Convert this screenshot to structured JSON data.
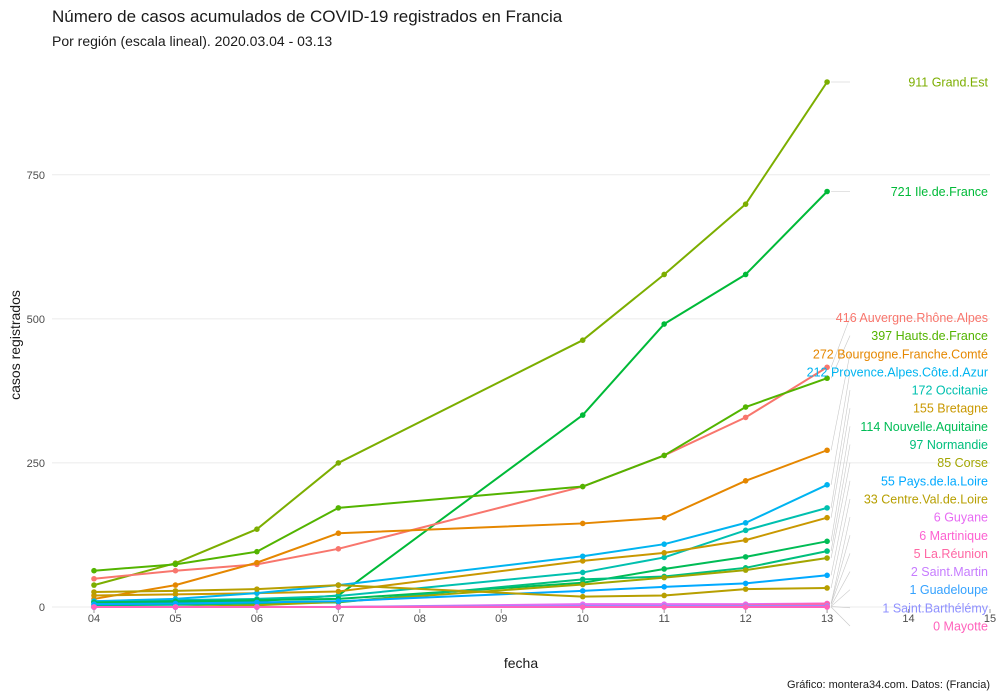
{
  "chart_data": {
    "type": "line",
    "title": "Número de casos acumulados de COVID-19 registrados en Francia",
    "subtitle": "Por región (escala lineal). 2020.03.04 - 03.13",
    "xlabel": "fecha",
    "ylabel": "casos registrados",
    "caption": "Gráfico: montera34.com. Datos:  (Francia)",
    "xlim": [
      4,
      15
    ],
    "ylim": [
      0,
      911
    ],
    "x_ticks": [
      "04",
      "05",
      "06",
      "07",
      "08",
      "09",
      "10",
      "11",
      "12",
      "13",
      "14",
      "15"
    ],
    "y_ticks": [
      0,
      250,
      500,
      750
    ],
    "x": [
      4,
      5,
      6,
      7,
      10,
      11,
      12,
      13
    ],
    "grid": true,
    "legend": "none (direct labels at line ends)",
    "series": [
      {
        "name": "Grand.Est",
        "label": "911 Grand.Est",
        "color": "#7CAE00",
        "values": [
          38,
          76,
          135,
          250,
          463,
          577,
          699,
          911
        ]
      },
      {
        "name": "Ile.de.France",
        "label": "721 Ile.de.France",
        "color": "#00BA38",
        "values": [
          8,
          7,
          10,
          20,
          333,
          491,
          577,
          721
        ]
      },
      {
        "name": "Auvergne.Rhône.Alpes",
        "label": "416 Auvergne.Rhône.Alpes",
        "color": "#F8766D",
        "values": [
          49,
          63,
          74,
          101,
          209,
          263,
          329,
          416
        ]
      },
      {
        "name": "Hauts.de.France",
        "label": "397 Hauts.de.France",
        "color": "#53B400",
        "values": [
          63,
          74,
          96,
          172,
          209,
          263,
          347,
          397
        ]
      },
      {
        "name": "Bourgogne.Franche.Comté",
        "label": "272 Bourgogne.Franche.Comté",
        "color": "#E58700",
        "values": [
          14,
          38,
          77,
          128,
          145,
          155,
          219,
          272
        ]
      },
      {
        "name": "Occitanie",
        "label": "172 Occitanie",
        "color": "#00C0AF",
        "values": [
          10,
          12,
          14,
          19,
          60,
          86,
          133,
          172
        ]
      },
      {
        "name": "Bretagne",
        "label": "155 Bretagne",
        "color": "#C99800",
        "values": [
          20,
          22,
          24,
          27,
          80,
          94,
          116,
          155
        ]
      },
      {
        "name": "Provence.Alpes.Côte.d.Azur",
        "label": "212 Provence.Alpes.Côte.d.Azur",
        "color": "#00B4F0",
        "values": [
          10,
          14,
          24,
          38,
          88,
          109,
          146,
          212
        ]
      },
      {
        "name": "Nouvelle.Aquitaine",
        "label": "114 Nouvelle.Aquitaine",
        "color": "#00BC56",
        "values": [
          8,
          10,
          12,
          14,
          42,
          66,
          87,
          114
        ]
      },
      {
        "name": "Normandie",
        "label": "97 Normandie",
        "color": "#00BF7D",
        "values": [
          3,
          4,
          6,
          8,
          48,
          53,
          68,
          97
        ]
      },
      {
        "name": "Corse",
        "label": "85 Corse",
        "color": "#A3A500",
        "values": [
          0,
          0,
          3,
          9,
          39,
          51,
          64,
          85
        ]
      },
      {
        "name": "Pays.de.la.Loire",
        "label": "55 Pays.de.la.Loire",
        "color": "#00A9FF",
        "values": [
          5,
          6,
          8,
          10,
          28,
          35,
          41,
          55
        ]
      },
      {
        "name": "Guyane",
        "label": "6 Guyane",
        "color": "#E76BF3",
        "values": [
          0,
          0,
          0,
          0,
          5,
          5,
          5,
          6
        ]
      },
      {
        "name": "Centre.Val.de.Loire",
        "label": "33 Centre.Val.de.Loire",
        "color": "#B79F00",
        "values": [
          26,
          28,
          31,
          38,
          18,
          20,
          31,
          33
        ]
      },
      {
        "name": "Martinique",
        "label": "6 Martinique",
        "color": "#FD61D1",
        "values": [
          0,
          0,
          0,
          0,
          2,
          2,
          3,
          6
        ]
      },
      {
        "name": "La.Réunion",
        "label": "5 La.Réunion",
        "color": "#FF67A4",
        "values": [
          0,
          0,
          0,
          0,
          1,
          1,
          3,
          5
        ]
      },
      {
        "name": "Saint.Martin",
        "label": "2 Saint.Martin",
        "color": "#C77CFF",
        "values": [
          0,
          0,
          0,
          0,
          2,
          2,
          2,
          2
        ]
      },
      {
        "name": "Guadeloupe",
        "label": "1 Guadeloupe",
        "color": "#35A2FF",
        "values": [
          0,
          0,
          0,
          0,
          1,
          1,
          1,
          1
        ]
      },
      {
        "name": "Saint.Barthélémy",
        "label": "1 Saint.Barthélémy",
        "color": "#8F91FF",
        "values": [
          0,
          0,
          0,
          0,
          1,
          1,
          1,
          1
        ]
      },
      {
        "name": "Mayotte",
        "label": "0 Mayotte",
        "color": "#FF62BC",
        "values": [
          0,
          0,
          0,
          0,
          0,
          0,
          0,
          0
        ]
      }
    ]
  }
}
